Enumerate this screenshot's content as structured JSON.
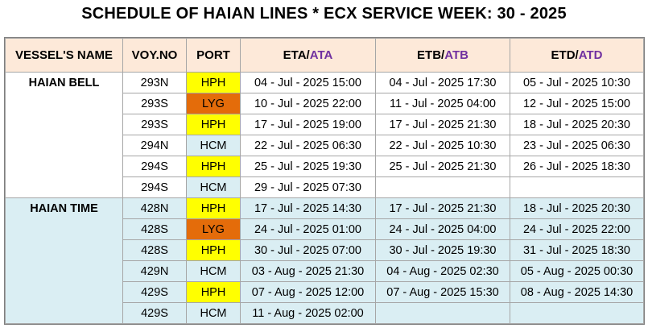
{
  "title": "SCHEDULE OF HAIAN LINES * ECX SERVICE WEEK: 30 - 2025",
  "table": {
    "columns": [
      {
        "text": "VESSEL'S NAME"
      },
      {
        "text": "VOY.NO"
      },
      {
        "text": "PORT"
      },
      {
        "text": "ETA/",
        "alt": "ATA"
      },
      {
        "text": "ETB/",
        "alt": "ATB"
      },
      {
        "text": "ETD/",
        "alt": "ATD"
      }
    ],
    "header_background": "#fde9d9",
    "alt_color": "#7030a0",
    "port_colors": {
      "HPH": "#ffff00",
      "LYG": "#e46c0a",
      "HCM": "#daeef3"
    },
    "groups": [
      {
        "vessel": "HAIAN BELL",
        "background": "#ffffff",
        "rows": [
          [
            "293N",
            "HPH",
            "04 - Jul - 2025 15:00",
            "04 - Jul - 2025 17:30",
            "05 - Jul - 2025 10:30"
          ],
          [
            "293S",
            "LYG",
            "10 - Jul - 2025 22:00",
            "11 - Jul - 2025 04:00",
            "12 - Jul - 2025 15:00"
          ],
          [
            "293S",
            "HPH",
            "17 - Jul - 2025 19:00",
            "17 - Jul - 2025 21:30",
            "18 - Jul - 2025 20:30"
          ],
          [
            "294N",
            "HCM",
            "22 - Jul - 2025 06:30",
            "22 - Jul - 2025 10:30",
            "23 - Jul - 2025 06:30"
          ],
          [
            "294S",
            "HPH",
            "25 - Jul - 2025 19:30",
            "25 - Jul - 2025 21:30",
            "26 - Jul - 2025 18:30"
          ],
          [
            "294S",
            "HCM",
            "29 - Jul - 2025 07:30",
            null,
            null
          ]
        ]
      },
      {
        "vessel": "HAIAN TIME",
        "background": "#daeef3",
        "rows": [
          [
            "428N",
            "HPH",
            "17 - Jul - 2025 14:30",
            "17 - Jul - 2025 21:30",
            "18 - Jul - 2025 20:30"
          ],
          [
            "428S",
            "LYG",
            "24 - Jul - 2025 01:00",
            "24 - Jul - 2025 04:00",
            "24 - Jul - 2025 22:00"
          ],
          [
            "428S",
            "HPH",
            "30 - Jul - 2025 07:00",
            "30 - Jul - 2025 19:30",
            "31 - Jul - 2025 18:30"
          ],
          [
            "429N",
            "HCM",
            "03 - Aug - 2025 21:30",
            "04 - Aug - 2025 02:30",
            "05 - Aug - 2025 00:30"
          ],
          [
            "429S",
            "HPH",
            "07 - Aug - 2025 12:00",
            "07 - Aug - 2025 15:30",
            "08 - Aug - 2025 14:30"
          ],
          [
            "429S",
            "HCM",
            "11 - Aug - 2025 02:00",
            null,
            null
          ]
        ]
      }
    ]
  }
}
